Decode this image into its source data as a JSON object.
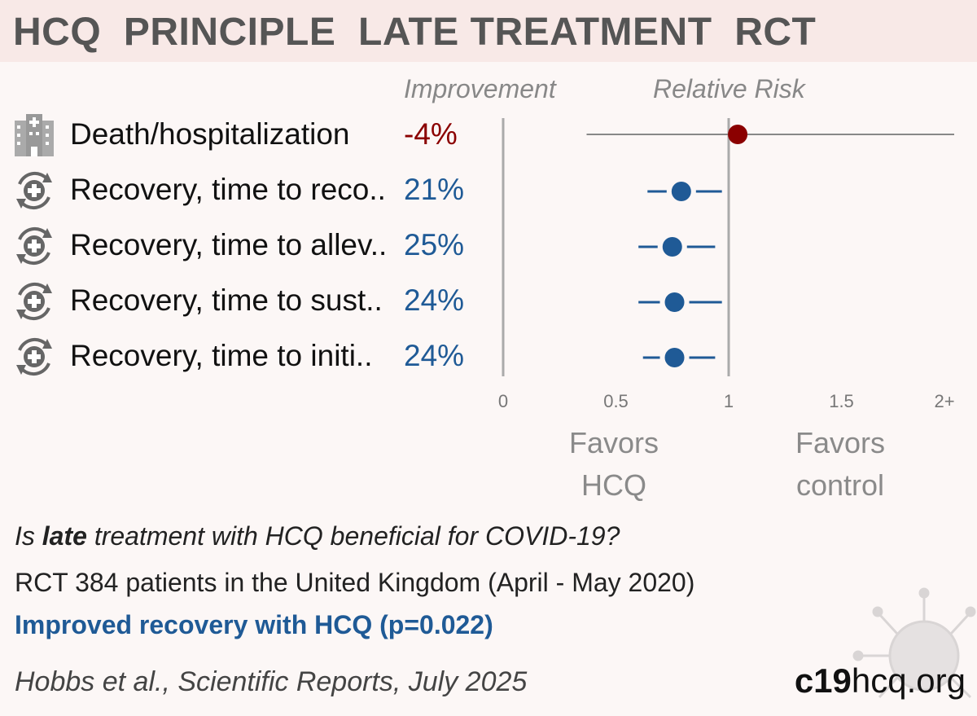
{
  "title": "HCQ  PRINCIPLE  LATE TREATMENT  RCT",
  "col_headers": {
    "improvement": "Improvement",
    "relative_risk": "Relative Risk"
  },
  "favors": {
    "left_line1": "Favors",
    "left_line2": "HCQ",
    "right_line1": "Favors",
    "right_line2": "control"
  },
  "question": {
    "pre": "Is ",
    "bold": "late",
    "post": " treatment with HCQ beneficial for COVID-19?"
  },
  "study": "RCT 384 patients in the United Kingdom (April - May 2020)",
  "conclusion": "Improved recovery with HCQ (p=0.022)",
  "citation": "Hobbs et al., Scientific Reports, July 2025",
  "brand": {
    "part1": "c19",
    "part2": "hcq.org"
  },
  "colors": {
    "negative": "#8b0000",
    "positive": "#1f5a96",
    "axis": "#aaaaaa"
  },
  "chart_data": {
    "type": "forest",
    "x_axis": {
      "ticks": [
        "0",
        "0.5",
        "1",
        "1.5",
        "2+"
      ],
      "range": [
        0,
        2
      ]
    },
    "rows": [
      {
        "label": "Death/hospitalization",
        "improvement": "-4%",
        "icon": "hospital-icon",
        "rr": 1.04,
        "ci": [
          0.37,
          2.0
        ],
        "ci_truncated": true,
        "color": "#8b0000"
      },
      {
        "label": "Recovery, time to reco..",
        "improvement": "21%",
        "icon": "recovery-icon",
        "rr": 0.79,
        "ci": [
          0.64,
          0.97
        ],
        "color": "#1f5a96"
      },
      {
        "label": "Recovery, time to allev..",
        "improvement": "25%",
        "icon": "recovery-icon",
        "rr": 0.75,
        "ci": [
          0.6,
          0.94
        ],
        "color": "#1f5a96"
      },
      {
        "label": "Recovery, time to sust..",
        "improvement": "24%",
        "icon": "recovery-icon",
        "rr": 0.76,
        "ci": [
          0.6,
          0.97
        ],
        "color": "#1f5a96"
      },
      {
        "label": "Recovery, time to initi..",
        "improvement": "24%",
        "icon": "recovery-icon",
        "rr": 0.76,
        "ci": [
          0.62,
          0.94
        ],
        "color": "#1f5a96"
      }
    ]
  }
}
